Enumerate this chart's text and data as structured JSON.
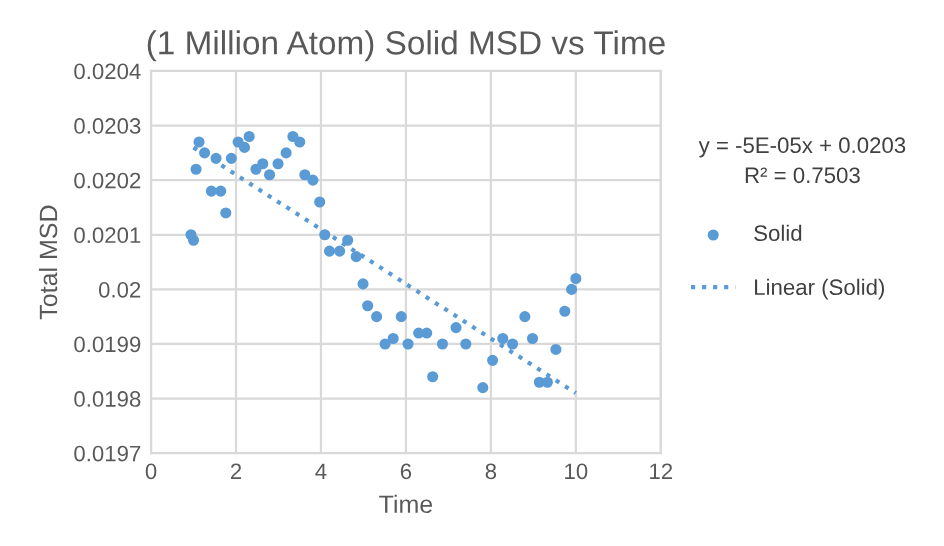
{
  "chart_data": {
    "type": "scatter",
    "title": "(1 Million Atom) Solid MSD vs Time",
    "xlabel": "Time",
    "ylabel": "Total MSD",
    "xlim": [
      0,
      12
    ],
    "xticks": [
      0,
      2,
      4,
      6,
      8,
      10,
      12
    ],
    "ylim": [
      0.0197,
      0.0204
    ],
    "yticks": [
      0.0197,
      0.0198,
      0.0199,
      0.02,
      0.0201,
      0.0202,
      0.0203,
      0.0204
    ],
    "grid": true,
    "legend": "right",
    "annotations": [
      "y = -5E-05x + 0.0203",
      "R² = 0.7503"
    ],
    "series": [
      {
        "name": "Solid",
        "marker": "circle",
        "color": "#5b9bd5",
        "x": [
          0.94,
          1.0,
          1.06,
          1.13,
          1.26,
          1.42,
          1.53,
          1.64,
          1.76,
          1.89,
          2.05,
          2.2,
          2.31,
          2.47,
          2.63,
          2.79,
          2.99,
          3.18,
          3.34,
          3.5,
          3.62,
          3.81,
          3.97,
          4.09,
          4.2,
          4.44,
          4.63,
          4.83,
          4.99,
          5.1,
          5.31,
          5.51,
          5.7,
          5.89,
          6.05,
          6.3,
          6.49,
          6.63,
          6.86,
          7.18,
          7.41,
          7.81,
          8.04,
          8.28,
          8.51,
          8.8,
          8.98,
          9.14,
          9.33,
          9.53,
          9.74,
          9.9,
          10.0
        ],
        "values": [
          0.0201,
          0.02009,
          0.02022,
          0.02027,
          0.02025,
          0.02018,
          0.02024,
          0.02018,
          0.02014,
          0.02024,
          0.02027,
          0.02026,
          0.02028,
          0.02022,
          0.02023,
          0.02021,
          0.02023,
          0.02025,
          0.02028,
          0.02027,
          0.02021,
          0.0202,
          0.02016,
          0.0201,
          0.02007,
          0.02007,
          0.02009,
          0.02006,
          0.02001,
          0.01997,
          0.01995,
          0.0199,
          0.01991,
          0.01995,
          0.0199,
          0.01992,
          0.01992,
          0.01984,
          0.0199,
          0.01993,
          0.0199,
          0.01982,
          0.01987,
          0.01991,
          0.0199,
          0.01995,
          0.01991,
          0.01983,
          0.01983,
          0.01989,
          0.01996,
          0.02,
          0.02002
        ]
      },
      {
        "name": "Linear (Solid)",
        "type": "line",
        "line_style": "dotted",
        "color": "#5b9bd5",
        "x": [
          1.0,
          10.0
        ],
        "values": [
          0.02026,
          0.01981
        ]
      }
    ]
  }
}
